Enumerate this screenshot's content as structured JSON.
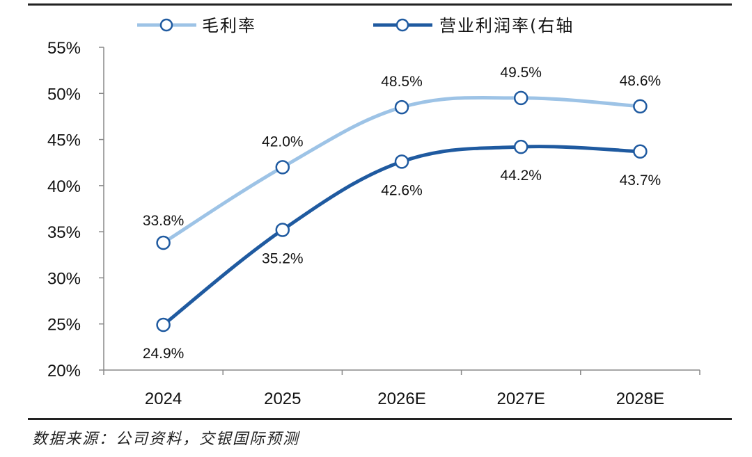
{
  "chart_data": {
    "type": "line",
    "categories": [
      "2024",
      "2025",
      "2026E",
      "2027E",
      "2028E"
    ],
    "series": [
      {
        "name": "毛利率",
        "values": [
          33.8,
          42.0,
          48.5,
          49.5,
          48.6
        ],
        "labels": [
          "33.8%",
          "42.0%",
          "48.5%",
          "49.5%",
          "48.6%"
        ],
        "color": "#9dc3e6"
      },
      {
        "name": "营业利润率(右轴",
        "values": [
          24.9,
          35.2,
          42.6,
          44.2,
          43.7
        ],
        "labels": [
          "24.9%",
          "35.2%",
          "42.6%",
          "44.2%",
          "43.7%"
        ],
        "color": "#1f5aa0"
      }
    ],
    "ylim": [
      20,
      55
    ],
    "yticks": [
      "20%",
      "25%",
      "30%",
      "35%",
      "40%",
      "45%",
      "50%",
      "55%"
    ],
    "legend_position": "top",
    "grid": false
  },
  "source_text": "数据来源：公司资料，交银国际预测"
}
